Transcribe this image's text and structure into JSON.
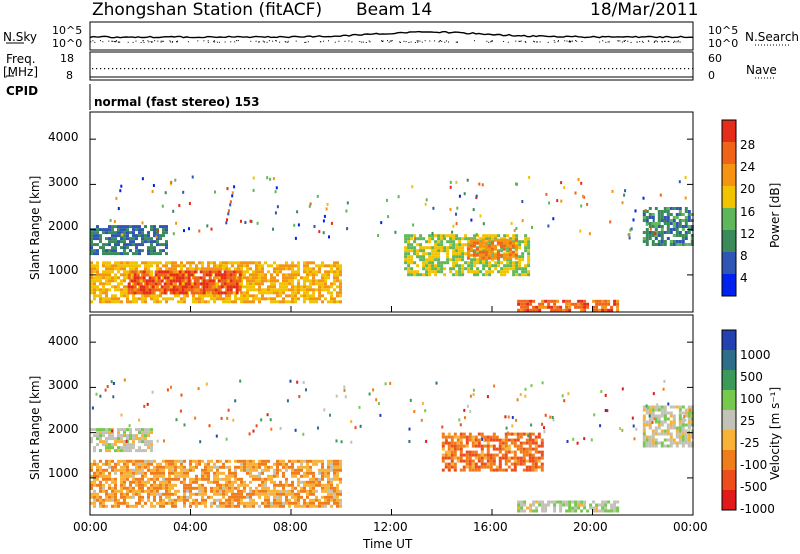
{
  "header": {
    "station": "Zhongshan Station (fitACF)",
    "beam": "Beam 14",
    "date": "18/Mar/2011"
  },
  "top_panels": {
    "nsky": {
      "label": "N.Sky",
      "ticks": [
        "10^5",
        "10^0"
      ]
    },
    "nsearch": {
      "label": "N.Search",
      "ticks": [
        "10^5",
        "10^0"
      ]
    },
    "freq": {
      "label_line1": "Freq.",
      "label_line2": "[MHz]",
      "ticks": [
        "18",
        "8"
      ]
    },
    "nave": {
      "label": "Nave",
      "ticks": [
        "60",
        "0"
      ]
    },
    "cpid": {
      "label": "CPID",
      "value": "normal (fast stereo) 153"
    }
  },
  "axes": {
    "ylabel": "Slant Range [km]",
    "xlabel": "Time UT",
    "y_ticks": [
      "4000",
      "3000",
      "2000",
      "1000"
    ],
    "x_ticks": [
      "00:00",
      "04:00",
      "08:00",
      "12:00",
      "16:00",
      "20:00",
      "00:00"
    ]
  },
  "power_scale": {
    "label": "Power [dB]",
    "ticks": [
      "28",
      "24",
      "20",
      "16",
      "12",
      "8",
      "4"
    ],
    "colors": [
      "#0022ee",
      "#2f56b4",
      "#3b8b5a",
      "#5fb75c",
      "#f2c400",
      "#f59312",
      "#f0641a",
      "#e52b1a"
    ]
  },
  "velocity_scale": {
    "label": "Velocity [m s⁻¹]",
    "ticks": [
      "1000",
      "500",
      "100",
      "25",
      "-25",
      "-100",
      "-500",
      "-1000"
    ],
    "colors": [
      "#2342b0",
      "#2f6e8a",
      "#3b9a5a",
      "#77c84f",
      "#c2c2b8",
      "#f8b238",
      "#f07d1c",
      "#ec4d1b",
      "#e2191b"
    ]
  },
  "chart_data": [
    {
      "type": "heatmap",
      "title": "Power",
      "xlabel": "Time UT",
      "ylabel": "Slant Range [km]",
      "xlim": [
        "00:00",
        "00:00 (+24h)"
      ],
      "ylim": [
        180,
        4600
      ],
      "colorbar": {
        "label": "Power [dB]",
        "range": [
          0,
          32
        ]
      },
      "regions": [
        {
          "t_start": 0.0,
          "t_end": 10.0,
          "range_from": 400,
          "range_to": 1300,
          "power_db": 20
        },
        {
          "t_start": 1.5,
          "t_end": 6.0,
          "range_from": 600,
          "range_to": 1100,
          "power_db": 28
        },
        {
          "t_start": 0.0,
          "t_end": 3.0,
          "range_from": 1500,
          "range_to": 2100,
          "power_db": 8
        },
        {
          "t_start": 12.5,
          "t_end": 17.5,
          "range_from": 1000,
          "range_to": 1900,
          "power_db": 16
        },
        {
          "t_start": 15.0,
          "t_end": 17.0,
          "range_from": 1350,
          "range_to": 1800,
          "power_db": 24
        },
        {
          "t_start": 17.0,
          "t_end": 21.0,
          "range_from": 250,
          "range_to": 450,
          "power_db": 26
        },
        {
          "t_start": 22.0,
          "t_end": 24.0,
          "range_from": 1700,
          "range_to": 2500,
          "power_db": 10
        }
      ]
    },
    {
      "type": "heatmap",
      "title": "Velocity",
      "xlabel": "Time UT",
      "ylabel": "Slant Range [km]",
      "xlim": [
        "00:00",
        "00:00 (+24h)"
      ],
      "ylim": [
        180,
        4600
      ],
      "colorbar": {
        "label": "Velocity [m s⁻¹]",
        "range": [
          -1000,
          1000
        ]
      },
      "regions": [
        {
          "t_start": 0.0,
          "t_end": 10.0,
          "range_from": 400,
          "range_to": 1400,
          "velocity": -300
        },
        {
          "t_start": 0.0,
          "t_end": 2.5,
          "range_from": 1600,
          "range_to": 2100,
          "velocity": 0
        },
        {
          "t_start": 14.0,
          "t_end": 18.0,
          "range_from": 1200,
          "range_to": 2000,
          "velocity": -500
        },
        {
          "t_start": 17.0,
          "t_end": 21.0,
          "range_from": 250,
          "range_to": 500,
          "velocity": 80
        },
        {
          "t_start": 22.0,
          "t_end": 24.0,
          "range_from": 1700,
          "range_to": 2600,
          "velocity": 0
        }
      ]
    }
  ]
}
